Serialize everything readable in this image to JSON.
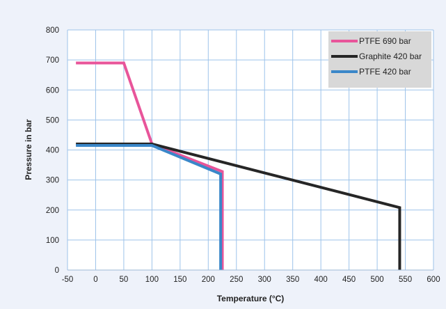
{
  "chart_data": {
    "type": "line",
    "title": "",
    "xlabel": "Temperature (°C)",
    "ylabel": "Pressure in bar",
    "xlim": [
      -50,
      600
    ],
    "ylim": [
      0,
      800
    ],
    "xticks": [
      -50,
      0,
      50,
      100,
      150,
      200,
      250,
      300,
      350,
      400,
      450,
      500,
      550,
      600
    ],
    "yticks": [
      0,
      100,
      200,
      300,
      400,
      500,
      600,
      700,
      800
    ],
    "grid": true,
    "legend_position": "top-right",
    "series": [
      {
        "name": "PTFE 690 bar",
        "color": "#e8559a",
        "x": [
          -35,
          50,
          100,
          225,
          225
        ],
        "y": [
          690,
          690,
          420,
          328,
          0
        ]
      },
      {
        "name": "Graphite 420 bar",
        "color": "#262626",
        "x": [
          -35,
          100,
          540,
          540
        ],
        "y": [
          420,
          420,
          208,
          0
        ]
      },
      {
        "name": "PTFE 420 bar",
        "color": "#3a87c9",
        "x": [
          -35,
          100,
          222,
          222
        ],
        "y": [
          415,
          415,
          320,
          0
        ]
      }
    ]
  }
}
